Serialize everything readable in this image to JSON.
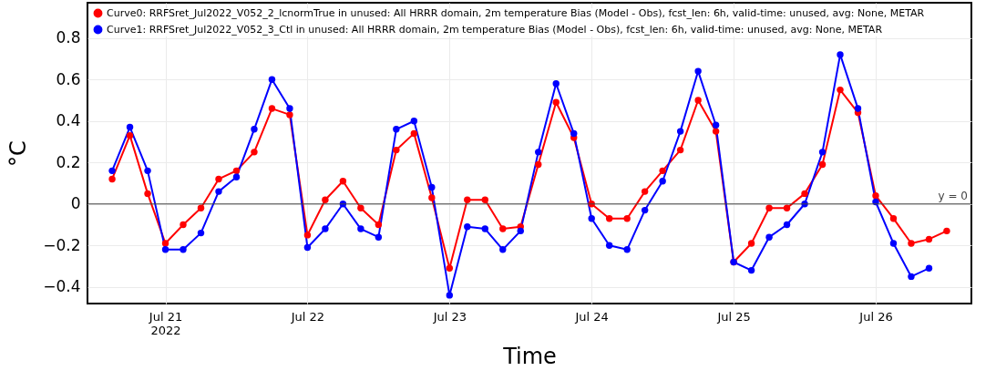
{
  "chart_data": {
    "type": "line",
    "xlabel": "Time",
    "ylabel": "°C",
    "x": [
      "2022-07-20T15:00",
      "2022-07-20T18:00",
      "2022-07-20T21:00",
      "2022-07-21T00:00",
      "2022-07-21T03:00",
      "2022-07-21T06:00",
      "2022-07-21T09:00",
      "2022-07-21T12:00",
      "2022-07-21T15:00",
      "2022-07-21T18:00",
      "2022-07-21T21:00",
      "2022-07-22T00:00",
      "2022-07-22T03:00",
      "2022-07-22T06:00",
      "2022-07-22T09:00",
      "2022-07-22T12:00",
      "2022-07-22T15:00",
      "2022-07-22T18:00",
      "2022-07-22T21:00",
      "2022-07-23T00:00",
      "2022-07-23T03:00",
      "2022-07-23T06:00",
      "2022-07-23T09:00",
      "2022-07-23T12:00",
      "2022-07-23T15:00",
      "2022-07-23T18:00",
      "2022-07-23T21:00",
      "2022-07-24T00:00",
      "2022-07-24T03:00",
      "2022-07-24T06:00",
      "2022-07-24T09:00",
      "2022-07-24T12:00",
      "2022-07-24T15:00",
      "2022-07-24T18:00",
      "2022-07-24T21:00",
      "2022-07-25T00:00",
      "2022-07-25T03:00",
      "2022-07-25T06:00",
      "2022-07-25T09:00",
      "2022-07-25T12:00",
      "2022-07-25T15:00",
      "2022-07-25T18:00",
      "2022-07-25T21:00",
      "2022-07-26T00:00",
      "2022-07-26T03:00",
      "2022-07-26T06:00",
      "2022-07-26T09:00",
      "2022-07-26T12:00"
    ],
    "series": [
      {
        "name": "Curve0: RRFSret_Jul2022_V052_2_lcnormTrue in unused: All HRRR domain, 2m temperature Bias (Model - Obs), fcst_len: 6h, valid-time: unused, avg: None, METAR",
        "color": "#ff0000",
        "values": [
          0.12,
          0.33,
          0.05,
          -0.19,
          -0.1,
          -0.02,
          0.12,
          0.16,
          0.25,
          0.46,
          0.43,
          -0.15,
          0.02,
          0.11,
          -0.02,
          -0.1,
          0.26,
          0.34,
          0.03,
          -0.31,
          0.02,
          0.02,
          -0.12,
          -0.11,
          0.19,
          0.49,
          0.32,
          0.0,
          -0.07,
          -0.07,
          0.06,
          0.16,
          0.26,
          0.5,
          0.35,
          -0.28,
          -0.19,
          -0.02,
          -0.02,
          0.05,
          0.19,
          0.55,
          0.44,
          0.04,
          -0.07,
          -0.19,
          -0.17,
          -0.13
        ]
      },
      {
        "name": "Curve1: RRFSret_Jul2022_V052_3_Ctl in unused: All HRRR domain, 2m temperature Bias (Model - Obs), fcst_len: 6h, valid-time: unused, avg: None, METAR",
        "color": "#0000ff",
        "values": [
          0.16,
          0.37,
          0.16,
          -0.22,
          -0.22,
          -0.14,
          0.06,
          0.13,
          0.36,
          0.6,
          0.46,
          -0.21,
          -0.12,
          0.0,
          -0.12,
          -0.16,
          0.36,
          0.4,
          0.08,
          -0.44,
          -0.11,
          -0.12,
          -0.22,
          -0.13,
          0.25,
          0.58,
          0.34,
          -0.07,
          -0.2,
          -0.22,
          -0.03,
          0.11,
          0.35,
          0.64,
          0.38,
          -0.28,
          -0.32,
          -0.16,
          -0.1,
          0.0,
          0.25,
          0.72,
          0.46,
          0.01,
          -0.19,
          -0.35,
          -0.31,
          null
        ]
      }
    ],
    "xlim": [
      "2022-07-20T10:50",
      "2022-07-26T16:10"
    ],
    "xticks": [
      {
        "value": "2022-07-21",
        "label": "Jul 21\n2022"
      },
      {
        "value": "2022-07-22",
        "label": "Jul 22"
      },
      {
        "value": "2022-07-23",
        "label": "Jul 23"
      },
      {
        "value": "2022-07-24",
        "label": "Jul 24"
      },
      {
        "value": "2022-07-25",
        "label": "Jul 25"
      },
      {
        "value": "2022-07-26",
        "label": "Jul 26"
      }
    ],
    "ylim": [
      -0.48,
      0.97
    ],
    "yticks": [
      -0.4,
      -0.2,
      0,
      0.2,
      0.4,
      0.6,
      0.8
    ],
    "ref_lines": [
      {
        "axis": "y",
        "value": 0,
        "label": "y = 0",
        "color": "#444444"
      }
    ],
    "grid": true,
    "legend": "top left",
    "marker": "circle",
    "line_style": "solid"
  }
}
